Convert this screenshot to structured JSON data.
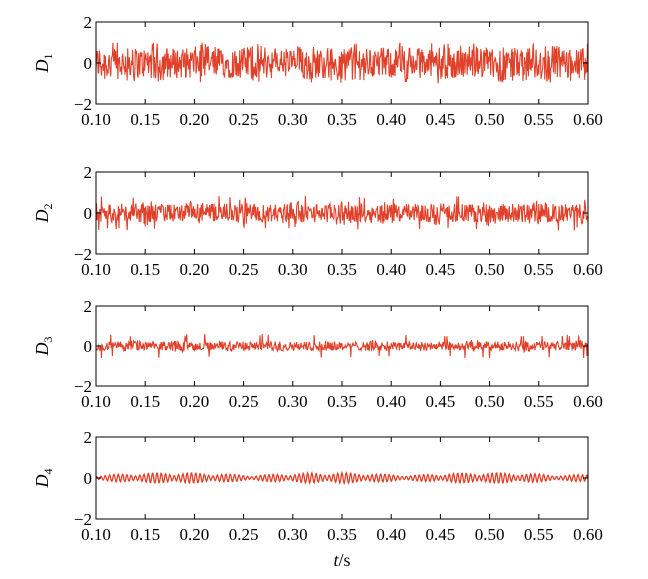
{
  "chart_data": {
    "type": "line",
    "xlabel_var": "t",
    "xlabel_unit": "/s",
    "x_ticks": [
      "0.10",
      "0.15",
      "0.20",
      "0.25",
      "0.30",
      "0.35",
      "0.40",
      "0.45",
      "0.50",
      "0.55",
      "0.60"
    ],
    "x_range": [
      0.1,
      0.6
    ],
    "y_ticks": [
      "2",
      "0",
      "−2"
    ],
    "y_range": [
      -2,
      2
    ],
    "line_color": "#e0412a",
    "panels": [
      {
        "ylabel": "D",
        "subscript": "1",
        "amplitude": 0.75,
        "peak": 1.0,
        "style": "dense"
      },
      {
        "ylabel": "D",
        "subscript": "2",
        "amplitude": 0.45,
        "peak": 0.85,
        "style": "dense"
      },
      {
        "ylabel": "D",
        "subscript": "3",
        "amplitude": 0.22,
        "peak": 0.6,
        "style": "dense"
      },
      {
        "ylabel": "D",
        "subscript": "4",
        "amplitude": 0.12,
        "peak": 0.35,
        "style": "oscillatory"
      }
    ]
  }
}
